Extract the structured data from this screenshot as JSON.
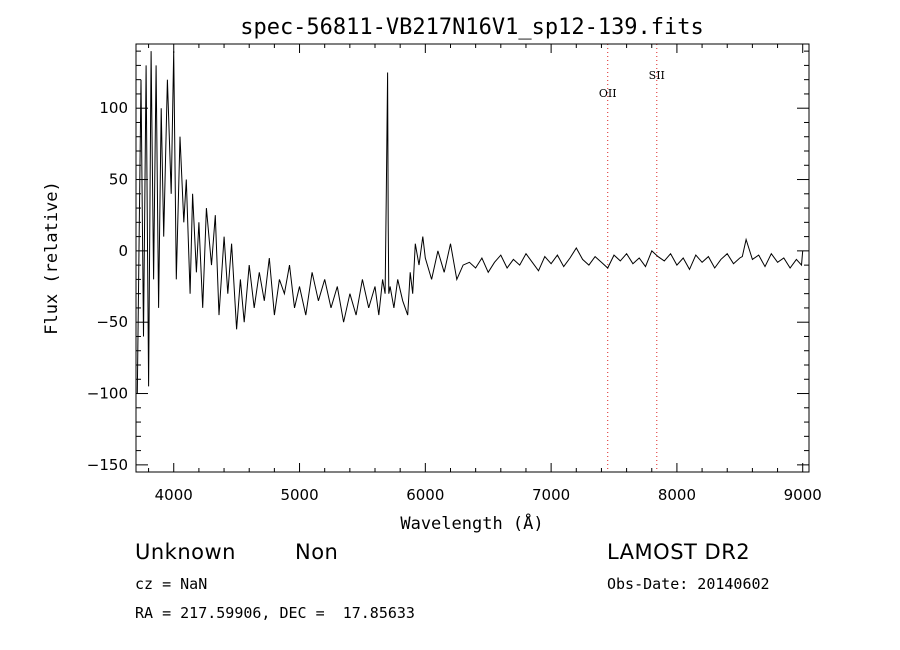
{
  "chart_data": {
    "type": "line",
    "title": "spec-56811-VB217N16V1_sp12-139.fits",
    "xlabel": "Wavelength (Å)",
    "ylabel": "Flux (relative)",
    "xlim": [
      3700,
      9050
    ],
    "ylim": [
      -155,
      145
    ],
    "x_ticks": [
      4000,
      5000,
      6000,
      7000,
      8000,
      9000
    ],
    "x_tick_labels": [
      "4000",
      "5000",
      "6000",
      "7000",
      "8000",
      "9000"
    ],
    "y_ticks": [
      -150,
      -100,
      -50,
      0,
      50,
      100
    ],
    "y_tick_labels": [
      "−150",
      "−100",
      "−50",
      "0",
      "50",
      "100"
    ],
    "grid": false,
    "series": [
      {
        "color": "#000000",
        "x": [
          3710,
          3740,
          3760,
          3780,
          3800,
          3820,
          3840,
          3860,
          3880,
          3900,
          3920,
          3950,
          3980,
          4000,
          4020,
          4050,
          4080,
          4100,
          4130,
          4150,
          4180,
          4200,
          4230,
          4260,
          4300,
          4330,
          4360,
          4400,
          4430,
          4460,
          4500,
          4530,
          4560,
          4600,
          4640,
          4680,
          4720,
          4760,
          4800,
          4840,
          4880,
          4920,
          4960,
          5000,
          5050,
          5100,
          5150,
          5200,
          5250,
          5300,
          5350,
          5400,
          5450,
          5500,
          5550,
          5600,
          5630,
          5660,
          5680,
          5690,
          5700,
          5705,
          5710,
          5720,
          5750,
          5780,
          5820,
          5860,
          5880,
          5900,
          5920,
          5950,
          5980,
          6000,
          6050,
          6100,
          6150,
          6200,
          6250,
          6300,
          6350,
          6400,
          6450,
          6500,
          6550,
          6600,
          6650,
          6700,
          6750,
          6800,
          6850,
          6900,
          6950,
          7000,
          7050,
          7100,
          7150,
          7200,
          7250,
          7300,
          7350,
          7400,
          7450,
          7500,
          7550,
          7600,
          7650,
          7700,
          7750,
          7800,
          7850,
          7900,
          7950,
          8000,
          8050,
          8100,
          8150,
          8200,
          8250,
          8300,
          8350,
          8400,
          8450,
          8500,
          8520,
          8550,
          8600,
          8650,
          8700,
          8750,
          8800,
          8850,
          8900,
          8950,
          8990,
          9000
        ],
        "y": [
          -100,
          120,
          -60,
          130,
          -95,
          140,
          -20,
          130,
          -40,
          100,
          10,
          120,
          40,
          140,
          -20,
          80,
          20,
          50,
          -30,
          40,
          -15,
          20,
          -40,
          30,
          -10,
          25,
          -45,
          10,
          -30,
          5,
          -55,
          -20,
          -50,
          -10,
          -40,
          -15,
          -35,
          -5,
          -45,
          -20,
          -30,
          -10,
          -40,
          -25,
          -45,
          -15,
          -35,
          -20,
          -40,
          -25,
          -50,
          -30,
          -45,
          -20,
          -40,
          -25,
          -45,
          -20,
          -30,
          40,
          125,
          20,
          -30,
          -25,
          -40,
          -20,
          -35,
          -45,
          -15,
          -30,
          5,
          -10,
          10,
          -5,
          -20,
          0,
          -15,
          5,
          -20,
          -10,
          -8,
          -12,
          -5,
          -15,
          -8,
          -3,
          -12,
          -6,
          -10,
          -2,
          -8,
          -14,
          -4,
          -9,
          -3,
          -11,
          -5,
          2,
          -6,
          -10,
          -4,
          -8,
          -12,
          -3,
          -7,
          -2,
          -9,
          -5,
          -11,
          0,
          -4,
          -7,
          -2,
          -10,
          -5,
          -13,
          -3,
          -8,
          -4,
          -12,
          -6,
          -2,
          -9,
          -5,
          -4,
          8,
          -6,
          -3,
          -11,
          -2,
          -8,
          -5,
          -12,
          -6,
          -10,
          0
        ]
      }
    ],
    "annotations": [
      {
        "label": "OII",
        "x": 7450
      },
      {
        "label": "SII",
        "x": 7840
      }
    ]
  },
  "footer": {
    "class_label": "Unknown",
    "subclass_label": "Non",
    "survey_label": "LAMOST DR2",
    "cz_text": "cz = NaN",
    "obs_date_text": "Obs-Date: 20140602",
    "coords_text": "RA = 217.59906, DEC =  17.85633"
  }
}
